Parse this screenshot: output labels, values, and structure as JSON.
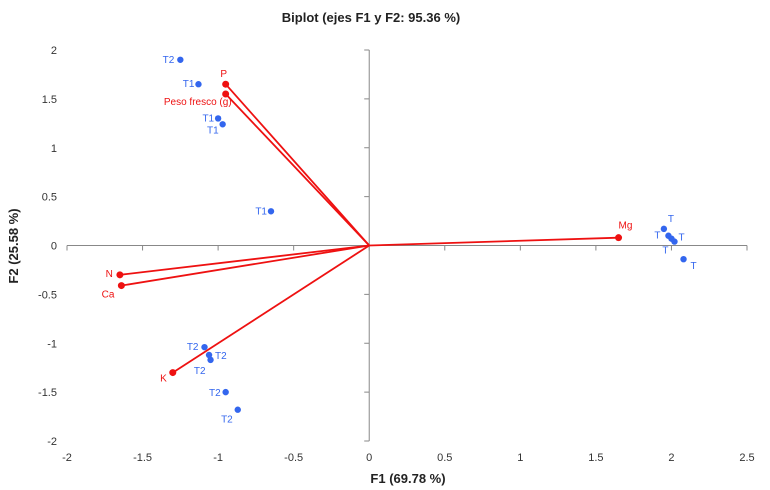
{
  "chart_data": {
    "type": "scatter",
    "title": "Biplot (ejes F1 y F2: 95.36 %)",
    "xlabel": "F1 (69.78 %)",
    "ylabel": "F2 (25.58 %)",
    "xlim": [
      -2,
      2.5
    ],
    "ylim": [
      -2,
      2
    ],
    "x_ticks": [
      -2,
      -1.5,
      -1,
      -0.5,
      0,
      0.5,
      1,
      1.5,
      2,
      2.5
    ],
    "y_ticks": [
      -2,
      -1.5,
      -1,
      -0.5,
      0,
      0.5,
      1,
      1.5,
      2
    ],
    "x_tick_labels": [
      "-2",
      "-1.5",
      "-1",
      "-0.5",
      "0",
      "0.5",
      "1",
      "1.5",
      "2",
      "2.5"
    ],
    "y_tick_labels": [
      "-2",
      "-1.5",
      "-1",
      "-0.5",
      "0",
      "0.5",
      "1",
      "1.5",
      "2"
    ],
    "grid": false,
    "colors": {
      "observations": "#3366ee",
      "variables": "#ee1111",
      "axis": "#888888"
    },
    "observations": [
      {
        "label": "T2",
        "x": -1.25,
        "y": 1.9
      },
      {
        "label": "T1",
        "x": -1.13,
        "y": 1.65
      },
      {
        "label": "T1",
        "x": -1.0,
        "y": 1.3
      },
      {
        "label": "T1",
        "x": -0.97,
        "y": 1.24
      },
      {
        "label": "T1",
        "x": -0.65,
        "y": 0.35
      },
      {
        "label": "T2",
        "x": -1.09,
        "y": -1.04
      },
      {
        "label": "T2",
        "x": -1.06,
        "y": -1.12
      },
      {
        "label": "T2",
        "x": -1.05,
        "y": -1.17
      },
      {
        "label": "T2",
        "x": -0.95,
        "y": -1.5
      },
      {
        "label": "T2",
        "x": -0.87,
        "y": -1.68
      },
      {
        "label": "T",
        "x": 1.95,
        "y": 0.17
      },
      {
        "label": "T",
        "x": 1.98,
        "y": 0.1
      },
      {
        "label": "T",
        "x": 2.0,
        "y": 0.07
      },
      {
        "label": "T",
        "x": 2.02,
        "y": 0.04
      },
      {
        "label": "T",
        "x": 2.08,
        "y": -0.14
      }
    ],
    "variables": [
      {
        "label": "P",
        "x": -0.95,
        "y": 1.65
      },
      {
        "label": "Peso fresco (g)",
        "x": -0.95,
        "y": 1.55
      },
      {
        "label": "Mg",
        "x": 1.65,
        "y": 0.08
      },
      {
        "label": "N",
        "x": -1.65,
        "y": -0.3
      },
      {
        "label": "Ca",
        "x": -1.64,
        "y": -0.41
      },
      {
        "label": "K",
        "x": -1.3,
        "y": -1.3
      }
    ]
  }
}
